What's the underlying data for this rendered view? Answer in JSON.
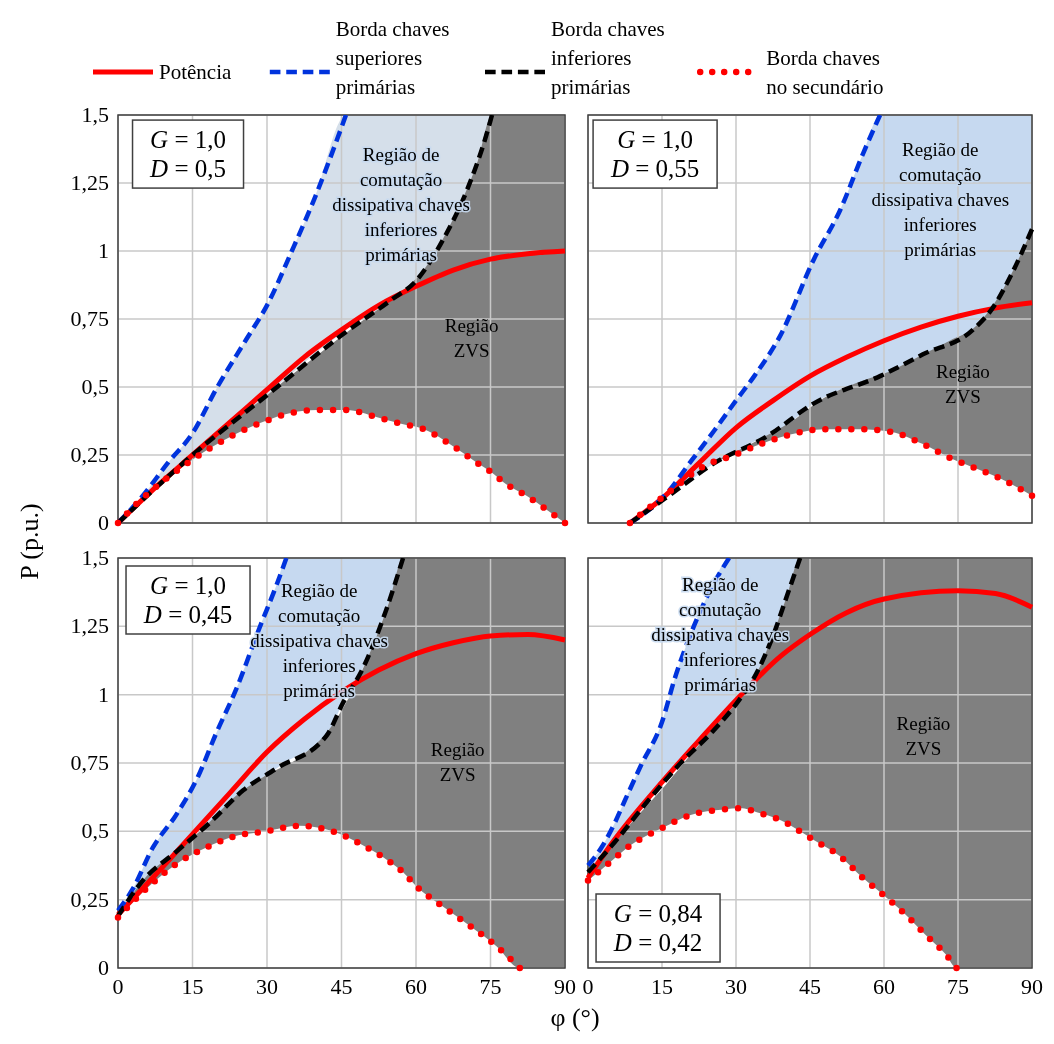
{
  "chart_data": [
    {
      "type": "line",
      "xlim": [
        0,
        90
      ],
      "ylim": [
        0,
        1.5
      ],
      "xticks": [
        0,
        15,
        30,
        45,
        60,
        75,
        90
      ],
      "yticks": [
        0,
        {
          "value": 0.25,
          "label": "0,25"
        },
        {
          "value": 0.5,
          "label": "0,5"
        },
        {
          "value": 0.75,
          "label": "0,75"
        },
        1,
        {
          "value": 1.25,
          "label": "1,25"
        },
        {
          "value": 1.5,
          "label": "1,5"
        }
      ],
      "grid": true,
      "tick_labels": "y",
      "legend": "top",
      "ylabel": "P (p.u.)",
      "annotations": [
        "G = 1,0\nD = 0,5",
        "Região de\ncomutação\ndissipativa chaves\ninferiores\nprimárias",
        "Região\nZVS"
      ],
      "series": [
        {
          "name": "Potência",
          "color": "#ff0000",
          "line_style": "solid",
          "x": [
            0,
            7.5,
            15,
            22.5,
            30,
            37.5,
            45,
            52.5,
            60,
            67.5,
            75,
            82.5,
            90
          ],
          "values": [
            0,
            0.13,
            0.25,
            0.37,
            0.49,
            0.61,
            0.71,
            0.8,
            0.87,
            0.93,
            0.97,
            0.99,
            1.0
          ]
        },
        {
          "name": "Borda chaves superiores primárias",
          "color": "#0033dd",
          "line_style": "dashed",
          "x": [
            0,
            5,
            10,
            15,
            20,
            26,
            30,
            35,
            39.5,
            45.9,
            60,
            65.7,
            70.4,
            75.3
          ],
          "values": [
            0,
            0.1,
            0.22,
            0.33,
            0.5,
            0.68,
            0.8,
            1.0,
            1.19,
            1.5,
            null,
            null,
            null,
            null
          ],
          "lower": [
            0,
            0.085,
            0.17,
            0.25,
            0.32,
            0.4,
            0.47,
            0.55,
            0.62,
            0.71,
            0.89,
            1.05,
            1.23,
            1.5
          ],
          "upper": [
            0,
            0.1,
            0.22,
            0.33,
            0.5,
            0.68,
            0.8,
            1.0,
            1.19,
            1.5,
            1.5,
            1.5,
            1.5,
            1.5
          ]
        },
        {
          "name": "Borda chaves inferiores primárias",
          "color": "#000000",
          "line_style": "dashed",
          "x": [
            0,
            15,
            30,
            45,
            55,
            60,
            65.7,
            70.4,
            74.7,
            75.3
          ],
          "values": [
            0,
            0.25,
            0.47,
            0.69,
            0.82,
            0.89,
            1.05,
            1.23,
            1.46,
            1.5
          ]
        },
        {
          "name": "Borda chaves no secundário",
          "color": "#ff0000",
          "line_style": "dotted",
          "x": [
            0,
            4,
            8.6,
            14,
            19,
            24,
            29,
            35,
            40,
            46,
            52,
            57,
            61.3,
            67,
            72.4,
            75.3,
            77.4,
            82.5,
            87.5,
            90
          ],
          "values": [
            0,
            0.075,
            0.147,
            0.22,
            0.28,
            0.33,
            0.37,
            0.405,
            0.415,
            0.415,
            0.39,
            0.365,
            0.347,
            0.288,
            0.22,
            0.185,
            0.153,
            0.097,
            0.033,
            0
          ],
          "lower": [
            0,
            0.075,
            0.147,
            0.22,
            0.28,
            0.33,
            0.37,
            0.405,
            0.415,
            0.415,
            0.39,
            0.365,
            0.347,
            0.288,
            0.22,
            0.185,
            0.153,
            0.097,
            0.033,
            0
          ],
          "upper": [
            0,
            0.075,
            0.147,
            0.235,
            0.31,
            0.385,
            0.455,
            0.545,
            0.615,
            0.7,
            0.78,
            0.85,
            0.925,
            1.1,
            1.33,
            1.5,
            1.5,
            1.5,
            1.5,
            1.5
          ]
        }
      ]
    },
    {
      "type": "line",
      "xlim": [
        0,
        90
      ],
      "ylim": [
        0,
        1.5
      ],
      "xticks": [
        0,
        15,
        30,
        45,
        60,
        75,
        90
      ],
      "yticks": [
        0,
        0.25,
        0.5,
        0.75,
        1,
        1.25,
        1.5
      ],
      "grid": true,
      "tick_labels": false,
      "annotations": [
        "G = 1,0\nD = 0,55",
        "Região de\ncomutação\ndissipativa chaves\ninferiores\nprimárias",
        "Região\nZVS"
      ],
      "series": [
        {
          "color": "#ff0000",
          "line_style": "solid",
          "x": [
            8.5,
            15,
            22.5,
            30,
            37.5,
            45,
            52.5,
            60,
            67.5,
            75,
            82.5,
            90
          ],
          "values": [
            0,
            0.09,
            0.22,
            0.35,
            0.45,
            0.54,
            0.61,
            0.67,
            0.72,
            0.76,
            0.79,
            0.81
          ]
        },
        {
          "color": "#0033dd",
          "line_style": "dashed",
          "x": [
            8.5,
            16,
            21,
            25.6,
            30,
            33.7,
            39,
            45.8,
            51.1,
            55.8,
            59.2,
            67.9,
            78,
            82,
            86,
            90
          ],
          "values": [
            0,
            0.11,
            0.23,
            0.34,
            0.45,
            0.54,
            0.69,
            0.97,
            1.15,
            1.36,
            1.5,
            null,
            null,
            null,
            null,
            null
          ],
          "lower": [
            0,
            0.1,
            0.16,
            0.22,
            0.26,
            0.3,
            0.34,
            0.44,
            0.49,
            0.52,
            0.54,
            0.62,
            0.71,
            0.79,
            0.92,
            1.08
          ],
          "upper": [
            0,
            0.11,
            0.23,
            0.34,
            0.45,
            0.54,
            0.69,
            0.97,
            1.15,
            1.36,
            1.5,
            1.5,
            1.5,
            1.5,
            1.5,
            1.5
          ]
        },
        {
          "color": "#000000",
          "line_style": "dashed",
          "x": [
            8.5,
            15.6,
            25.6,
            36.4,
            45.8,
            59.2,
            67.9,
            78,
            82,
            86,
            90
          ],
          "values": [
            0,
            0.09,
            0.22,
            0.32,
            0.44,
            0.54,
            0.62,
            0.71,
            0.79,
            0.92,
            1.08
          ]
        },
        {
          "color": "#ff0000",
          "line_style": "dotted",
          "x": [
            8.5,
            16.2,
            23.6,
            29.7,
            35,
            41,
            47.8,
            55.2,
            61.5,
            67.9,
            73.3,
            78.7,
            84,
            90
          ],
          "values": [
            0,
            0.11,
            0.21,
            0.25,
            0.29,
            0.325,
            0.345,
            0.345,
            0.335,
            0.29,
            0.24,
            0.2,
            0.16,
            0.1
          ],
          "lower": [
            0,
            0.11,
            0.21,
            0.25,
            0.29,
            0.325,
            0.345,
            0.345,
            0.335,
            0.29,
            0.24,
            0.2,
            0.16,
            0.1
          ],
          "upper": [
            0,
            0.11,
            0.21,
            0.26,
            0.31,
            0.37,
            0.46,
            0.52,
            0.56,
            0.62,
            0.67,
            0.725,
            0.855,
            1.08
          ]
        }
      ]
    },
    {
      "type": "line",
      "xlim": [
        0,
        90
      ],
      "ylim": [
        0,
        1.5
      ],
      "xticks": [
        0,
        15,
        30,
        45,
        60,
        75,
        90
      ],
      "yticks": [
        0,
        {
          "value": 0.25,
          "label": "0,25"
        },
        {
          "value": 0.5,
          "label": "0,5"
        },
        {
          "value": 0.75,
          "label": "0,75"
        },
        1,
        {
          "value": 1.25,
          "label": "1,25"
        },
        {
          "value": 1.5,
          "label": "1,5"
        }
      ],
      "grid": true,
      "xlabel": "φ (°)",
      "annotations": [
        "G = 1,0\nD = 0,45",
        "Região de\ncomutação\ndissipativa chaves\ninferiores\nprimárias",
        "Região\nZVS"
      ],
      "series": [
        {
          "color": "#ff0000",
          "line_style": "solid",
          "x": [
            0,
            7.5,
            15,
            22.5,
            30,
            37.5,
            45,
            52.5,
            60,
            67.5,
            75,
            82.5,
            90
          ],
          "values": [
            0.195,
            0.34,
            0.49,
            0.64,
            0.79,
            0.91,
            1.01,
            1.09,
            1.15,
            1.19,
            1.215,
            1.22,
            1.2
          ]
        },
        {
          "color": "#0033dd",
          "line_style": "dashed",
          "x": [
            0,
            3,
            7,
            11.7,
            16.1,
            19.8,
            23.8,
            28.5,
            31.9,
            33.9,
            42,
            45.3,
            49.4,
            54,
            57.4
          ],
          "values": [
            0.21,
            0.29,
            0.44,
            0.56,
            0.7,
            0.86,
            1.02,
            1.245,
            1.4,
            1.5,
            null,
            null,
            null,
            null,
            null
          ],
          "lower": [
            0.19,
            0.26,
            0.33,
            0.425,
            0.5,
            0.55,
            0.62,
            0.69,
            0.73,
            0.755,
            0.85,
            0.97,
            1.1,
            1.31,
            1.5
          ],
          "upper": [
            0.21,
            0.29,
            0.44,
            0.56,
            0.7,
            0.86,
            1.02,
            1.245,
            1.4,
            1.5,
            1.5,
            1.5,
            1.5,
            1.5,
            1.5
          ]
        },
        {
          "color": "#000000",
          "line_style": "dashed",
          "x": [
            0,
            5,
            11.7,
            18.4,
            25.2,
            31.9,
            42,
            45.3,
            49.4,
            54,
            57.4
          ],
          "values": [
            0.19,
            0.32,
            0.425,
            0.53,
            0.65,
            0.73,
            0.85,
            0.97,
            1.1,
            1.31,
            1.5
          ]
        },
        {
          "color": "#ff0000",
          "line_style": "dotted",
          "x": [
            0,
            5.7,
            11.7,
            17.7,
            23.1,
            29.8,
            36.5,
            43.2,
            49.2,
            54.6,
            57.4,
            60,
            65.4,
            70.8,
            76.2,
            80.9,
            85,
            90
          ],
          "values": [
            0.185,
            0.29,
            0.38,
            0.44,
            0.48,
            0.5,
            0.52,
            0.5,
            0.45,
            0.39,
            0.35,
            0.3,
            0.225,
            0.155,
            0.08,
            0,
            null,
            null
          ],
          "lower": [
            0.185,
            0.29,
            0.38,
            0.44,
            0.48,
            0.5,
            0.52,
            0.5,
            0.45,
            0.39,
            0.35,
            0.3,
            0.225,
            0.155,
            0.08,
            0,
            0,
            0
          ],
          "upper": [
            0.19,
            0.335,
            0.425,
            0.52,
            0.62,
            0.705,
            0.77,
            0.89,
            1.09,
            1.34,
            1.5,
            1.5,
            1.5,
            1.5,
            1.5,
            1.5,
            1.5,
            1.5
          ]
        }
      ]
    },
    {
      "type": "line",
      "xlim": [
        0,
        90
      ],
      "ylim": [
        0,
        1.5
      ],
      "xticks": [
        0,
        15,
        30,
        45,
        60,
        75,
        90
      ],
      "yticks": [
        0,
        0.25,
        0.5,
        0.75,
        1,
        1.25,
        1.5
      ],
      "grid": true,
      "tick_labels": "x",
      "annotations": [
        "G = 0,84\nD = 0,42",
        "Região de\ncomutação\ndissipativa chaves\ninferiores\nprimárias",
        "Região\nZVS"
      ],
      "series": [
        {
          "color": "#ff0000",
          "line_style": "solid",
          "x": [
            0,
            5.4,
            15,
            22.4,
            30,
            39,
            45,
            52.4,
            60,
            75,
            82.6,
            90
          ],
          "values": [
            0.33,
            0.47,
            0.68,
            0.83,
            0.98,
            1.14,
            1.22,
            1.3,
            1.35,
            1.38,
            1.37,
            1.32
          ]
        },
        {
          "color": "#0033dd",
          "line_style": "dashed",
          "x": [
            0,
            2.7,
            5.4,
            7.4,
            10.7,
            15,
            17.6,
            21,
            25,
            28.6,
            34.2,
            37.6,
            40.3,
            43
          ],
          "values": [
            0.375,
            0.44,
            0.53,
            0.61,
            0.74,
            0.9,
            1.06,
            1.23,
            1.39,
            1.5,
            null,
            null,
            null,
            null
          ],
          "lower": [
            0.35,
            0.41,
            0.46,
            0.52,
            0.585,
            0.69,
            0.73,
            0.79,
            0.86,
            0.93,
            1.08,
            1.22,
            1.36,
            1.5
          ],
          "upper": [
            0.375,
            0.44,
            0.53,
            0.61,
            0.74,
            0.9,
            1.06,
            1.23,
            1.39,
            1.5,
            1.5,
            1.5,
            1.5,
            1.5
          ]
        },
        {
          "color": "#000000",
          "line_style": "dashed",
          "x": [
            0,
            5.4,
            12.1,
            18.8,
            25.5,
            30.2,
            34.2,
            37.6,
            40.3,
            43
          ],
          "values": [
            0.35,
            0.46,
            0.61,
            0.75,
            0.87,
            0.97,
            1.08,
            1.22,
            1.36,
            1.5
          ]
        },
        {
          "color": "#ff0000",
          "line_style": "dotted",
          "x": [
            0,
            4,
            8.7,
            14.8,
            20.8,
            27.5,
            30.9,
            34.2,
            40.3,
            43,
            45.6,
            51,
            55.7,
            59.7,
            64.4,
            68.5,
            72.5,
            74.7,
            80,
            90
          ],
          "values": [
            0.32,
            0.38,
            0.45,
            0.51,
            0.56,
            0.58,
            0.585,
            0.57,
            0.53,
            0.5,
            0.47,
            0.41,
            0.33,
            0.27,
            0.195,
            0.12,
            0.05,
            0,
            null,
            null
          ],
          "lower": [
            0.32,
            0.38,
            0.45,
            0.51,
            0.56,
            0.58,
            0.585,
            0.57,
            0.53,
            0.5,
            0.47,
            0.41,
            0.33,
            0.27,
            0.195,
            0.12,
            0.05,
            0,
            0,
            0
          ],
          "upper": [
            0.35,
            0.43,
            0.53,
            0.65,
            0.78,
            0.92,
            0.985,
            1.08,
            1.36,
            1.5,
            1.5,
            1.5,
            1.5,
            1.5,
            1.5,
            1.5,
            1.5,
            1.5,
            1.5,
            1.5
          ]
        }
      ]
    }
  ]
}
